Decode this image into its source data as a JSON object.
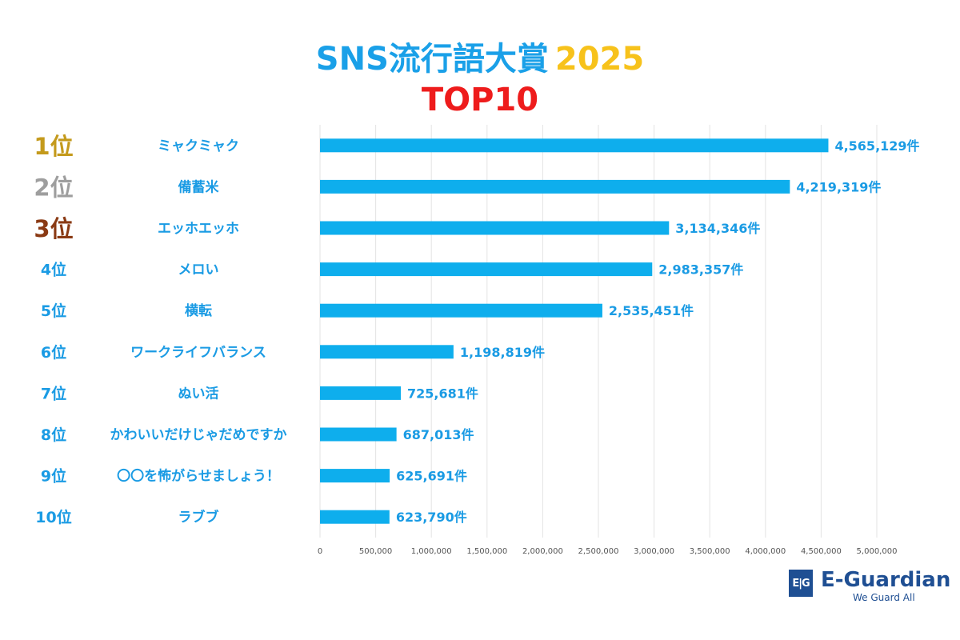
{
  "colors": {
    "bar": "#0eaeed",
    "label": "#1a9be4",
    "gold": "#c49a1c",
    "silver": "#9e9e9e",
    "bronze": "#8a3a14",
    "grid": "#e3e3e3",
    "tick": "#555555"
  },
  "logo": {
    "mark": "E|G",
    "name": "E-Guardian",
    "tagline": "We Guard All"
  },
  "chart_data": {
    "type": "bar",
    "orientation": "horizontal",
    "title": "SNS流行語大賞",
    "title_year": "2025",
    "subtitle": "TOP10",
    "ranks": [
      "1位",
      "2位",
      "3位",
      "4位",
      "5位",
      "6位",
      "7位",
      "8位",
      "9位",
      "10位"
    ],
    "categories": [
      "ミャクミャク",
      "備蓄米",
      "エッホエッホ",
      "メロい",
      "横転",
      "ワークライフバランス",
      "ぬい活",
      "かわいいだけじゃだめですか",
      "〇〇を怖がらせましょう！",
      "ラブブ"
    ],
    "values": [
      4565129,
      4219319,
      3134346,
      2983357,
      2535451,
      1198819,
      725681,
      687013,
      625691,
      623790
    ],
    "data_labels": [
      "4,565,129件",
      "4,219,319件",
      "3,134,346件",
      "2,983,357件",
      "2,535,451件",
      "1,198,819件",
      "725,681件",
      "687,013件",
      "625,691件",
      "623,790件"
    ],
    "xlim": [
      0,
      5000000
    ],
    "xticks": [
      0,
      500000,
      1000000,
      1500000,
      2000000,
      2500000,
      3000000,
      3500000,
      4000000,
      4500000,
      5000000
    ],
    "xtick_labels": [
      "0",
      "500,000",
      "1,000,000",
      "1,500,000",
      "2,000,000",
      "2,500,000",
      "3,000,000",
      "3,500,000",
      "4,000,000",
      "4,500,000",
      "5,000,000"
    ],
    "grid": true,
    "legend": "none",
    "xlabel": "",
    "ylabel": ""
  }
}
